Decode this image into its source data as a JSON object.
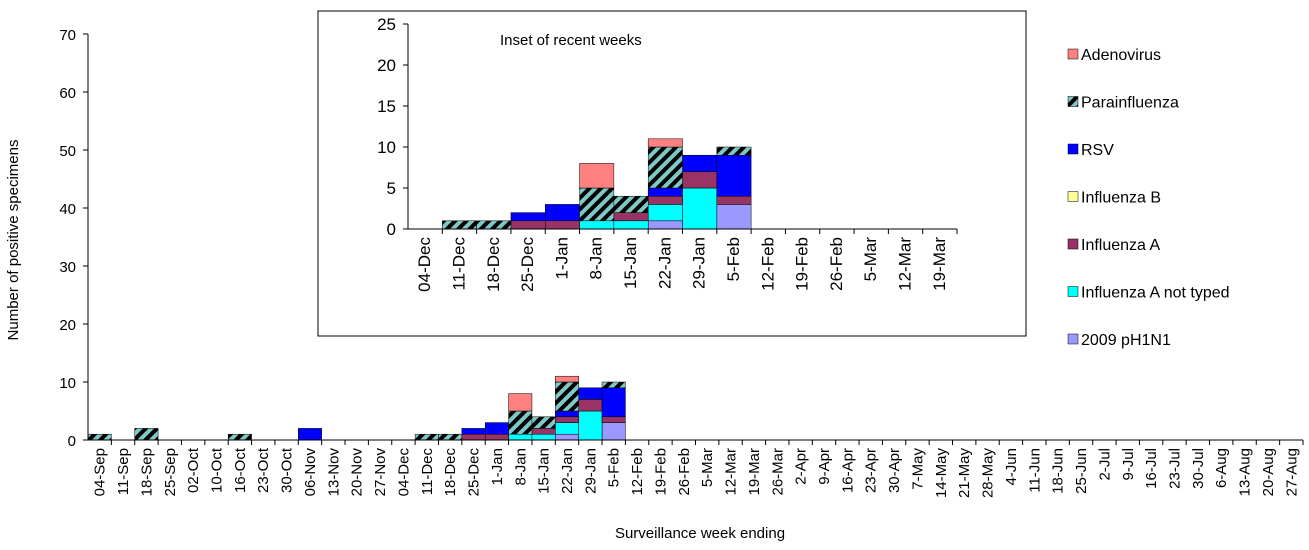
{
  "chart_data": [
    {
      "type": "bar",
      "stacked": true,
      "x_label": "Surveillance week ending",
      "y_label": "Number of positive specimens",
      "categories": [
        "04-Sep",
        "11-Sep",
        "18-Sep",
        "25-Sep",
        "02-Oct",
        "10-Oct",
        "16-Oct",
        "23-Oct",
        "30-Oct",
        "06-Nov",
        "13-Nov",
        "20-Nov",
        "27-Nov",
        "04-Dec",
        "11-Dec",
        "18-Dec",
        "25-Dec",
        "1-Jan",
        "8-Jan",
        "15-Jan",
        "22-Jan",
        "29-Jan",
        "5-Feb",
        "12-Feb",
        "19-Feb",
        "26-Feb",
        "5-Mar",
        "12-Mar",
        "19-Mar",
        "26-Mar",
        "2-Apr",
        "9-Apr",
        "16-Apr",
        "23-Apr",
        "30-Apr",
        "7-May",
        "14-May",
        "21-May",
        "28-May",
        "4-Jun",
        "11-Jun",
        "18-Jun",
        "25-Jun",
        "2-Jul",
        "9-Jul",
        "16-Jul",
        "23-Jul",
        "30-Jul",
        "6-Aug",
        "13-Aug",
        "20-Aug",
        "27-Aug"
      ],
      "ylim": [
        0,
        70
      ],
      "yticks": [
        0,
        10,
        20,
        30,
        40,
        50,
        60,
        70
      ],
      "legend": "right",
      "series": [
        {
          "name": "2009 pH1N1",
          "color": "#9999ff",
          "values": [
            0,
            0,
            0,
            0,
            0,
            0,
            0,
            0,
            0,
            0,
            0,
            0,
            0,
            0,
            0,
            0,
            0,
            0,
            0,
            0,
            1,
            0,
            3,
            0,
            0,
            0,
            0,
            0,
            0,
            0,
            0,
            0,
            0,
            0,
            0,
            0,
            0,
            0,
            0,
            0,
            0,
            0,
            0,
            0,
            0,
            0,
            0,
            0,
            0,
            0,
            0,
            0
          ]
        },
        {
          "name": "Influenza A not typed",
          "color": "#00ffff",
          "values": [
            0,
            0,
            0,
            0,
            0,
            0,
            0,
            0,
            0,
            0,
            0,
            0,
            0,
            0,
            0,
            0,
            0,
            0,
            1,
            1,
            2,
            5,
            0,
            0,
            0,
            0,
            0,
            0,
            0,
            0,
            0,
            0,
            0,
            0,
            0,
            0,
            0,
            0,
            0,
            0,
            0,
            0,
            0,
            0,
            0,
            0,
            0,
            0,
            0,
            0,
            0,
            0
          ]
        },
        {
          "name": "Influenza A",
          "color": "#993366",
          "values": [
            0,
            0,
            0,
            0,
            0,
            0,
            0,
            0,
            0,
            0,
            0,
            0,
            0,
            0,
            0,
            0,
            1,
            1,
            0,
            1,
            1,
            2,
            1,
            0,
            0,
            0,
            0,
            0,
            0,
            0,
            0,
            0,
            0,
            0,
            0,
            0,
            0,
            0,
            0,
            0,
            0,
            0,
            0,
            0,
            0,
            0,
            0,
            0,
            0,
            0,
            0,
            0
          ]
        },
        {
          "name": "Influenza B",
          "color": "#ffff99",
          "values": [
            0,
            0,
            0,
            0,
            0,
            0,
            0,
            0,
            0,
            0,
            0,
            0,
            0,
            0,
            0,
            0,
            0,
            0,
            0,
            0,
            0,
            0,
            0,
            0,
            0,
            0,
            0,
            0,
            0,
            0,
            0,
            0,
            0,
            0,
            0,
            0,
            0,
            0,
            0,
            0,
            0,
            0,
            0,
            0,
            0,
            0,
            0,
            0,
            0,
            0,
            0,
            0
          ]
        },
        {
          "name": "RSV",
          "color": "#0000ff",
          "values": [
            0,
            0,
            0,
            0,
            0,
            0,
            0,
            0,
            0,
            2,
            0,
            0,
            0,
            0,
            0,
            0,
            1,
            2,
            0,
            0,
            1,
            2,
            5,
            0,
            0,
            0,
            0,
            0,
            0,
            0,
            0,
            0,
            0,
            0,
            0,
            0,
            0,
            0,
            0,
            0,
            0,
            0,
            0,
            0,
            0,
            0,
            0,
            0,
            0,
            0,
            0,
            0
          ]
        },
        {
          "name": "Parainfluenza",
          "color": "#000000",
          "hatch": true,
          "values": [
            1,
            0,
            2,
            0,
            0,
            0,
            1,
            0,
            0,
            0,
            0,
            0,
            0,
            0,
            1,
            1,
            0,
            0,
            4,
            2,
            5,
            0,
            1,
            0,
            0,
            0,
            0,
            0,
            0,
            0,
            0,
            0,
            0,
            0,
            0,
            0,
            0,
            0,
            0,
            0,
            0,
            0,
            0,
            0,
            0,
            0,
            0,
            0,
            0,
            0,
            0,
            0
          ]
        },
        {
          "name": "Adenovirus",
          "color": "#ff8080",
          "values": [
            0,
            0,
            0,
            0,
            0,
            0,
            0,
            0,
            0,
            0,
            0,
            0,
            0,
            0,
            0,
            0,
            0,
            0,
            3,
            0,
            1,
            0,
            0,
            0,
            0,
            0,
            0,
            0,
            0,
            0,
            0,
            0,
            0,
            0,
            0,
            0,
            0,
            0,
            0,
            0,
            0,
            0,
            0,
            0,
            0,
            0,
            0,
            0,
            0,
            0,
            0,
            0
          ]
        }
      ]
    },
    {
      "type": "bar",
      "stacked": true,
      "title": "Inset of recent weeks",
      "categories": [
        "04-Dec",
        "11-Dec",
        "18-Dec",
        "25-Dec",
        "1-Jan",
        "8-Jan",
        "15-Jan",
        "22-Jan",
        "29-Jan",
        "5-Feb",
        "12-Feb",
        "19-Feb",
        "26-Feb",
        "5-Mar",
        "12-Mar",
        "19-Mar"
      ],
      "ylim": [
        0,
        25
      ],
      "yticks": [
        0,
        5,
        10,
        15,
        20,
        25
      ],
      "series": [
        {
          "color": "#9999ff",
          "values": [
            0,
            0,
            0,
            0,
            0,
            0,
            0,
            1,
            0,
            3,
            0,
            0,
            0,
            0,
            0,
            0
          ]
        },
        {
          "color": "#00ffff",
          "values": [
            0,
            0,
            0,
            0,
            0,
            1,
            1,
            2,
            5,
            0,
            0,
            0,
            0,
            0,
            0,
            0
          ]
        },
        {
          "color": "#993366",
          "values": [
            0,
            0,
            0,
            1,
            1,
            0,
            1,
            1,
            2,
            1,
            0,
            0,
            0,
            0,
            0,
            0
          ]
        },
        {
          "color": "#ffff99",
          "values": [
            0,
            0,
            0,
            0,
            0,
            0,
            0,
            0,
            0,
            0,
            0,
            0,
            0,
            0,
            0,
            0
          ]
        },
        {
          "color": "#0000ff",
          "values": [
            0,
            0,
            0,
            1,
            2,
            0,
            0,
            1,
            2,
            5,
            0,
            0,
            0,
            0,
            0,
            0
          ]
        },
        {
          "color": "#000000",
          "hatch": true,
          "values": [
            0,
            1,
            1,
            0,
            0,
            4,
            2,
            5,
            0,
            1,
            0,
            0,
            0,
            0,
            0,
            0
          ]
        },
        {
          "color": "#ff8080",
          "values": [
            0,
            0,
            0,
            0,
            0,
            3,
            0,
            1,
            0,
            0,
            0,
            0,
            0,
            0,
            0,
            0
          ]
        }
      ]
    }
  ]
}
